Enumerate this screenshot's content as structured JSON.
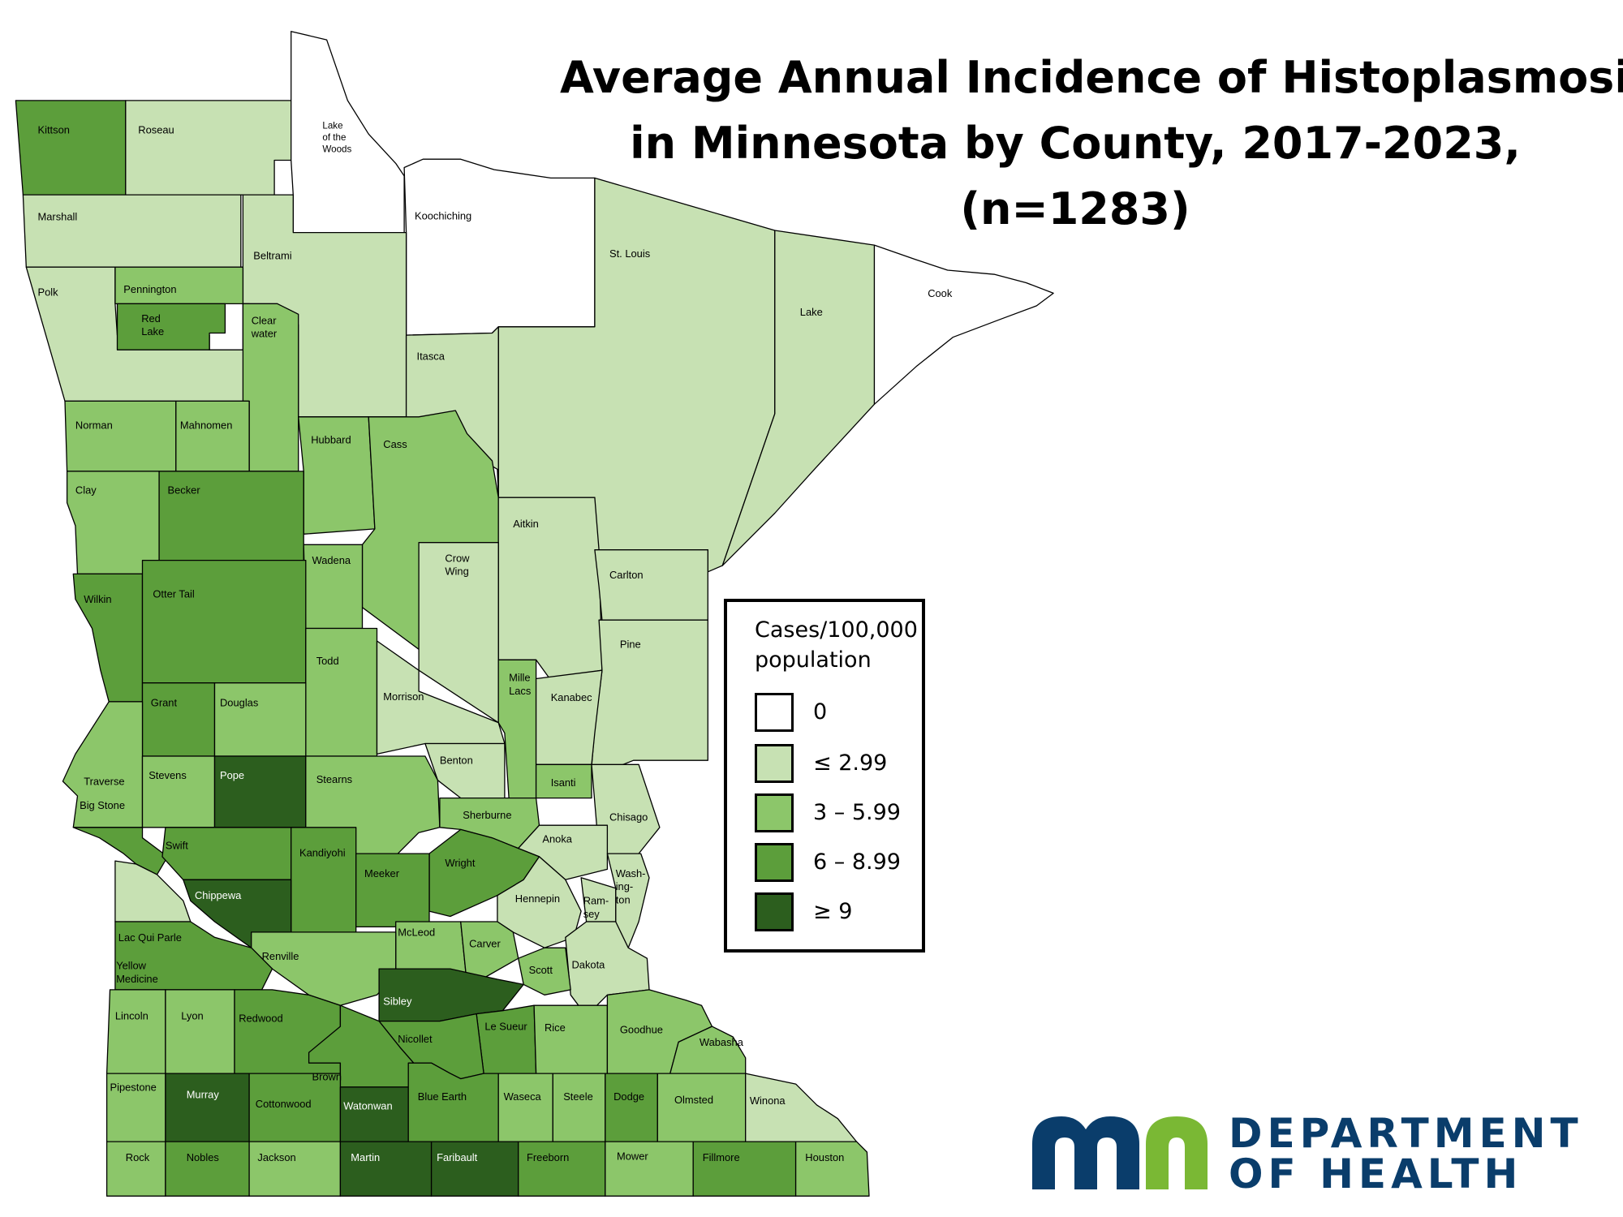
{
  "title": {
    "line1": "Average Annual Incidence of Histoplasmosis",
    "line2": "in Minnesota by County, 2017-2023,",
    "line3": "(n=1283)"
  },
  "legend": {
    "title_line1": "Cases/100,000",
    "title_line2": "population",
    "items": [
      {
        "label": "0",
        "color": "#ffffff"
      },
      {
        "label": "≤ 2.99",
        "color": "#c7e1b3"
      },
      {
        "label": "3 – 5.99",
        "color": "#8cc66a"
      },
      {
        "label": "6 – 8.99",
        "color": "#5c9e3b"
      },
      {
        "label": "≥ 9",
        "color": "#2c5e1e"
      }
    ]
  },
  "logo": {
    "line1": "DEPARTMENT",
    "line2": "OF HEALTH",
    "m_color": "#0a3d6b",
    "n_color": "#7ab834"
  },
  "counties": [
    {
      "lines": [
        "Kittson"
      ],
      "class": 3
    },
    {
      "lines": [
        "Roseau"
      ],
      "class": 1
    },
    {
      "lines": [
        "Lake",
        "of the",
        "Woods"
      ],
      "class": 0
    },
    {
      "lines": [
        "Marshall"
      ],
      "class": 1
    },
    {
      "lines": [
        "Koochiching"
      ],
      "class": 0
    },
    {
      "lines": [
        "Beltrami"
      ],
      "class": 1
    },
    {
      "lines": [
        "St. Louis"
      ],
      "class": 1
    },
    {
      "lines": [
        "Cook"
      ],
      "class": 0
    },
    {
      "lines": [
        "Lake"
      ],
      "class": 1
    },
    {
      "lines": [
        "Polk"
      ],
      "class": 1
    },
    {
      "lines": [
        "Pennington"
      ],
      "class": 2
    },
    {
      "lines": [
        "Red",
        "Lake"
      ],
      "class": 3
    },
    {
      "lines": [
        "Clear",
        "water"
      ],
      "class": 2
    },
    {
      "lines": [
        "Itasca"
      ],
      "class": 1
    },
    {
      "lines": [
        "Norman"
      ],
      "class": 2
    },
    {
      "lines": [
        "Mahnomen"
      ],
      "class": 2
    },
    {
      "lines": [
        "Hubbard"
      ],
      "class": 2
    },
    {
      "lines": [
        "Cass"
      ],
      "class": 2
    },
    {
      "lines": [
        "Clay"
      ],
      "class": 2
    },
    {
      "lines": [
        "Becker"
      ],
      "class": 3
    },
    {
      "lines": [
        "Aitkin"
      ],
      "class": 1
    },
    {
      "lines": [
        "Wadena"
      ],
      "class": 2
    },
    {
      "lines": [
        "Crow",
        "Wing"
      ],
      "class": 1
    },
    {
      "lines": [
        "Carlton"
      ],
      "class": 1
    },
    {
      "lines": [
        "Wilkin"
      ],
      "class": 3
    },
    {
      "lines": [
        "Otter Tail"
      ],
      "class": 3
    },
    {
      "lines": [
        "Pine"
      ],
      "class": 1
    },
    {
      "lines": [
        "Todd"
      ],
      "class": 2
    },
    {
      "lines": [
        "Mille",
        "Lacs"
      ],
      "class": 2
    },
    {
      "lines": [
        "Morrison"
      ],
      "class": 1
    },
    {
      "lines": [
        "Kanabec"
      ],
      "class": 1
    },
    {
      "lines": [
        "Grant"
      ],
      "class": 3
    },
    {
      "lines": [
        "Douglas"
      ],
      "class": 2
    },
    {
      "lines": [
        "Benton"
      ],
      "class": 1
    },
    {
      "lines": [
        "Traverse"
      ],
      "class": 2
    },
    {
      "lines": [
        "Stevens"
      ],
      "class": 2
    },
    {
      "lines": [
        "Pope"
      ],
      "class": 4
    },
    {
      "lines": [
        "Stearns"
      ],
      "class": 2
    },
    {
      "lines": [
        "Isanti"
      ],
      "class": 2
    },
    {
      "lines": [
        "Big Stone"
      ],
      "class": 3
    },
    {
      "lines": [
        "Sherburne"
      ],
      "class": 2
    },
    {
      "lines": [
        "Chisago"
      ],
      "class": 1
    },
    {
      "lines": [
        "Anoka"
      ],
      "class": 1
    },
    {
      "lines": [
        "Swift"
      ],
      "class": 3
    },
    {
      "lines": [
        "Kandiyohi"
      ],
      "class": 3
    },
    {
      "lines": [
        "Wright"
      ],
      "class": 3
    },
    {
      "lines": [
        "Meeker"
      ],
      "class": 3
    },
    {
      "lines": [
        "Wash-",
        "ing-",
        "ton"
      ],
      "class": 1
    },
    {
      "lines": [
        "Chippewa"
      ],
      "class": 4
    },
    {
      "lines": [
        "Hennepin"
      ],
      "class": 1
    },
    {
      "lines": [
        "Ram-",
        "sey"
      ],
      "class": 1
    },
    {
      "lines": [
        "McLeod"
      ],
      "class": 2
    },
    {
      "lines": [
        "Lac Qui Parle"
      ],
      "class": 1
    },
    {
      "lines": [
        "Carver"
      ],
      "class": 2
    },
    {
      "lines": [
        "Renville"
      ],
      "class": 2
    },
    {
      "lines": [
        "Dakota"
      ],
      "class": 1
    },
    {
      "lines": [
        "Scott"
      ],
      "class": 2
    },
    {
      "lines": [
        "Yellow",
        "Medicine"
      ],
      "class": 3
    },
    {
      "lines": [
        "Sibley"
      ],
      "class": 4
    },
    {
      "lines": [
        "Lincoln"
      ],
      "class": 2
    },
    {
      "lines": [
        "Lyon"
      ],
      "class": 2
    },
    {
      "lines": [
        "Redwood"
      ],
      "class": 3
    },
    {
      "lines": [
        "Le Sueur"
      ],
      "class": 3
    },
    {
      "lines": [
        "Rice"
      ],
      "class": 2
    },
    {
      "lines": [
        "Goodhue"
      ],
      "class": 2
    },
    {
      "lines": [
        "Nicollet"
      ],
      "class": 3
    },
    {
      "lines": [
        "Wabasha"
      ],
      "class": 2
    },
    {
      "lines": [
        "Brown"
      ],
      "class": 3
    },
    {
      "lines": [
        "Pipestone"
      ],
      "class": 2
    },
    {
      "lines": [
        "Murray"
      ],
      "class": 4
    },
    {
      "lines": [
        "Cottonwood"
      ],
      "class": 3
    },
    {
      "lines": [
        "Watonwan"
      ],
      "class": 4
    },
    {
      "lines": [
        "Blue Earth"
      ],
      "class": 3
    },
    {
      "lines": [
        "Waseca"
      ],
      "class": 2
    },
    {
      "lines": [
        "Steele"
      ],
      "class": 2
    },
    {
      "lines": [
        "Dodge"
      ],
      "class": 3
    },
    {
      "lines": [
        "Olmsted"
      ],
      "class": 2
    },
    {
      "lines": [
        "Winona"
      ],
      "class": 1
    },
    {
      "lines": [
        "Rock"
      ],
      "class": 2
    },
    {
      "lines": [
        "Nobles"
      ],
      "class": 3
    },
    {
      "lines": [
        "Jackson"
      ],
      "class": 2
    },
    {
      "lines": [
        "Martin"
      ],
      "class": 4
    },
    {
      "lines": [
        "Faribault"
      ],
      "class": 4
    },
    {
      "lines": [
        "Freeborn"
      ],
      "class": 3
    },
    {
      "lines": [
        "Mower"
      ],
      "class": 2
    },
    {
      "lines": [
        "Fillmore"
      ],
      "class": 3
    },
    {
      "lines": [
        "Houston"
      ],
      "class": 2
    }
  ]
}
